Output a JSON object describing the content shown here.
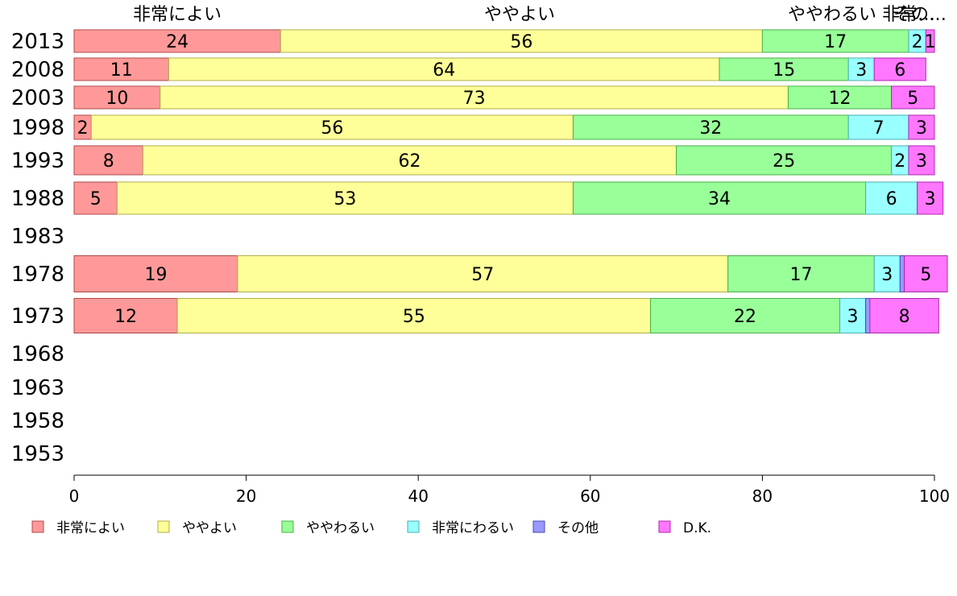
{
  "chart_data": {
    "type": "bar",
    "orientation": "horizontal",
    "stacked": true,
    "categories": [
      "2013",
      "2008",
      "2003",
      "1998",
      "1993",
      "1988",
      "1983",
      "1978",
      "1973",
      "1968",
      "1963",
      "1958",
      "1953"
    ],
    "series": [
      {
        "name": "非常によい",
        "color": "#ff9999",
        "values": [
          24,
          11,
          10,
          2,
          8,
          5,
          null,
          19,
          12,
          null,
          null,
          null,
          null
        ]
      },
      {
        "name": "ややよい",
        "color": "#ffff99",
        "values": [
          56,
          64,
          73,
          56,
          62,
          53,
          null,
          57,
          55,
          null,
          null,
          null,
          null
        ]
      },
      {
        "name": "ややわるい",
        "color": "#99ff99",
        "values": [
          17,
          15,
          12,
          32,
          25,
          34,
          null,
          17,
          22,
          null,
          null,
          null,
          null
        ]
      },
      {
        "name": "非常にわるい",
        "color": "#99ffff",
        "values": [
          2,
          3,
          0,
          7,
          2,
          6,
          null,
          3,
          3,
          null,
          null,
          null,
          null
        ]
      },
      {
        "name": "その他",
        "color": "#9999ff",
        "values": [
          0,
          0,
          0,
          0,
          0,
          0,
          null,
          0.5,
          0.5,
          null,
          null,
          null,
          null
        ]
      },
      {
        "name": "D.K.",
        "color": "#ff77ff",
        "values": [
          1,
          6,
          5,
          3,
          3,
          3,
          null,
          5,
          8,
          null,
          null,
          null,
          null
        ]
      }
    ],
    "data_labels": [
      [
        "24",
        "56",
        "17",
        "2",
        "",
        "1"
      ],
      [
        "11",
        "64",
        "15",
        "3",
        "",
        "6"
      ],
      [
        "10",
        "73",
        "12",
        "",
        "",
        "5"
      ],
      [
        "2",
        "56",
        "32",
        "7",
        "",
        "3"
      ],
      [
        "8",
        "62",
        "25",
        "2",
        "",
        "3"
      ],
      [
        "5",
        "53",
        "34",
        "6",
        "",
        "3"
      ],
      [
        "",
        "",
        "",
        "",
        "",
        ""
      ],
      [
        "19",
        "57",
        "17",
        "3",
        "",
        "5"
      ],
      [
        "12",
        "55",
        "22",
        "3",
        "",
        "8"
      ],
      [
        "",
        "",
        "",
        "",
        "",
        ""
      ],
      [
        "",
        "",
        "",
        "",
        "",
        ""
      ],
      [
        "",
        "",
        "",
        "",
        "",
        ""
      ],
      [
        "",
        "",
        "",
        "",
        "",
        ""
      ]
    ],
    "top_labels": [
      "非常によい",
      "ややよい",
      "ややわるい",
      "非常…",
      "その…"
    ],
    "xlim": [
      0,
      100
    ],
    "x_ticks": [
      0,
      20,
      40,
      60,
      80,
      100
    ],
    "xlabel": "",
    "ylabel": "",
    "legend_position": "bottom",
    "grid": false
  }
}
